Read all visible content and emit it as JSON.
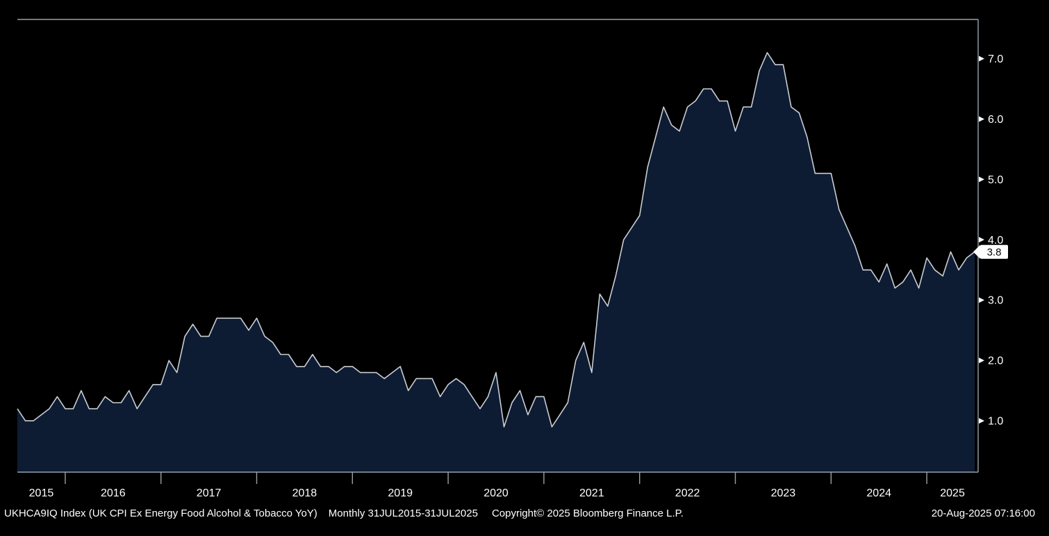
{
  "app": "Bloomberg Terminal Chart",
  "colors": {
    "background": "#000000",
    "area_fill": "#0e1c33",
    "line": "#c9ced4",
    "axis": "#98a2ab",
    "tick_label": "#ffffff",
    "last_value_bg": "#ffffff",
    "last_value_text": "#000000"
  },
  "footer": {
    "ticker_line": "UKHCA9IQ Index (UK CPI Ex Energy Food Alcohol & Tobacco YoY)",
    "range_line": "Monthly 31JUL2015-31JUL2025",
    "copyright": "Copyright© 2025 Bloomberg Finance L.P.",
    "timestamp": "20-Aug-2025 07:16:00"
  },
  "chart_data": {
    "type": "area",
    "title": "UK CPI Ex Energy Food Alcohol & Tobacco YoY",
    "ticker": "UKHCA9IQ Index",
    "frequency": "Monthly",
    "x_start": "31JUL2015",
    "x_end": "31JUL2025",
    "x_tick_labels": [
      "2015",
      "2016",
      "2017",
      "2018",
      "2019",
      "2020",
      "2021",
      "2022",
      "2023",
      "2024",
      "2025"
    ],
    "y_ticks": [
      1.0,
      2.0,
      3.0,
      4.0,
      5.0,
      6.0,
      7.0
    ],
    "ylim": [
      0.15,
      7.65
    ],
    "grid": false,
    "legend": "none",
    "last_value": "3.8",
    "series": [
      {
        "name": "UKHCA9IQ Index",
        "start": "JUL2015",
        "interval": "monthly",
        "values": [
          1.2,
          1.0,
          1.0,
          1.1,
          1.2,
          1.4,
          1.2,
          1.2,
          1.5,
          1.2,
          1.2,
          1.4,
          1.3,
          1.3,
          1.5,
          1.2,
          1.4,
          1.6,
          1.6,
          2.0,
          1.8,
          2.4,
          2.6,
          2.4,
          2.4,
          2.7,
          2.7,
          2.7,
          2.7,
          2.5,
          2.7,
          2.4,
          2.3,
          2.1,
          2.1,
          1.9,
          1.9,
          2.1,
          1.9,
          1.9,
          1.8,
          1.9,
          1.9,
          1.8,
          1.8,
          1.8,
          1.7,
          1.8,
          1.9,
          1.5,
          1.7,
          1.7,
          1.7,
          1.4,
          1.6,
          1.7,
          1.6,
          1.4,
          1.2,
          1.4,
          1.8,
          0.9,
          1.3,
          1.5,
          1.1,
          1.4,
          1.4,
          0.9,
          1.1,
          1.3,
          2.0,
          2.3,
          1.8,
          3.1,
          2.9,
          3.4,
          4.0,
          4.2,
          4.4,
          5.2,
          5.7,
          6.2,
          5.9,
          5.8,
          6.2,
          6.3,
          6.5,
          6.5,
          6.3,
          6.3,
          5.8,
          6.2,
          6.2,
          6.8,
          7.1,
          6.9,
          6.9,
          6.2,
          6.1,
          5.7,
          5.1,
          5.1,
          5.1,
          4.5,
          4.2,
          3.9,
          3.5,
          3.5,
          3.3,
          3.6,
          3.2,
          3.3,
          3.5,
          3.2,
          3.7,
          3.5,
          3.4,
          3.8,
          3.5,
          3.7,
          3.8
        ]
      }
    ]
  }
}
